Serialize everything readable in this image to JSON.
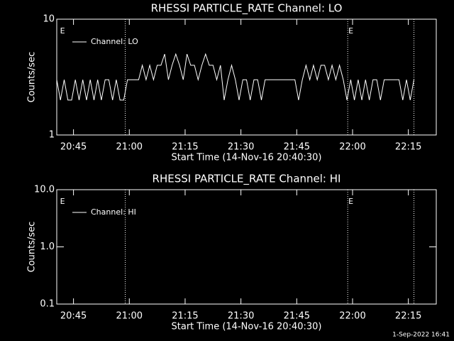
{
  "chart_data": [
    {
      "type": "line",
      "title": "RHESSI PARTICLE_RATE Channel: LO",
      "xlabel": "Start Time (14-Nov-16 20:40:30)",
      "ylabel": "Counts/sec",
      "log_y": true,
      "ylim": [
        1,
        10
      ],
      "yticks": [
        10,
        1
      ],
      "xlim": [
        0,
        102
      ],
      "xticks": [
        {
          "value": 4.5,
          "label": "20:45"
        },
        {
          "value": 19.5,
          "label": "21:00"
        },
        {
          "value": 34.5,
          "label": "21:15"
        },
        {
          "value": 49.5,
          "label": "21:30"
        },
        {
          "value": 64.5,
          "label": "21:45"
        },
        {
          "value": 79.5,
          "label": "22:00"
        },
        {
          "value": 94.5,
          "label": "22:15"
        }
      ],
      "vlines": [
        18.4,
        78.2,
        96
      ],
      "annotations": [
        {
          "text": "E",
          "x": 0.7
        },
        {
          "text": "E",
          "x": 78.2
        }
      ],
      "legend": "upper left",
      "x": [
        0,
        1,
        2,
        3,
        4,
        5,
        6,
        7,
        8,
        9,
        10,
        11,
        12,
        13,
        14,
        15,
        16,
        17,
        18,
        19,
        20,
        21,
        22,
        23,
        24,
        25,
        26,
        27,
        28,
        29,
        30,
        31,
        32,
        33,
        34,
        35,
        36,
        37,
        38,
        39,
        40,
        41,
        42,
        43,
        44,
        45,
        46,
        47,
        48,
        49,
        50,
        51,
        52,
        53,
        54,
        55,
        56,
        57,
        58,
        59,
        60,
        61,
        62,
        63,
        64,
        65,
        66,
        67,
        68,
        69,
        70,
        71,
        72,
        73,
        74,
        75,
        76,
        77,
        78,
        79,
        80,
        81,
        82,
        83,
        84,
        85,
        86,
        87,
        88,
        89,
        90,
        91,
        92,
        93,
        94,
        95,
        96
      ],
      "series": [
        {
          "name": "Channel: LO",
          "color": "#ffffff",
          "values": [
            3,
            2,
            3,
            2,
            2,
            3,
            2,
            3,
            2,
            3,
            2,
            3,
            2,
            3,
            3,
            2,
            3,
            2,
            2,
            3,
            3,
            3,
            3,
            4,
            3,
            4,
            3,
            4,
            4,
            5,
            3,
            4,
            5,
            4,
            3,
            5,
            4,
            4,
            3,
            4,
            5,
            4,
            4,
            3,
            4,
            2,
            3,
            4,
            3,
            2,
            3,
            3,
            2,
            3,
            3,
            2,
            3,
            3,
            3,
            3,
            3,
            3,
            3,
            3,
            3,
            2,
            3,
            4,
            3,
            4,
            3,
            4,
            4,
            3,
            4,
            3,
            4,
            3,
            2,
            3,
            2,
            3,
            2,
            3,
            2,
            3,
            3,
            2,
            3,
            3,
            3,
            3,
            3,
            2,
            3,
            2,
            3
          ]
        }
      ]
    },
    {
      "type": "line",
      "title": "RHESSI PARTICLE_RATE Channel: HI",
      "xlabel": "Start Time (14-Nov-16 20:40:30)",
      "ylabel": "Counts/sec",
      "log_y": true,
      "ylim": [
        0.1,
        10
      ],
      "yticks": [
        {
          "value": 10,
          "label": "10.0"
        },
        {
          "value": 1,
          "label": "1.0"
        },
        0.1
      ],
      "xlim": [
        0,
        102
      ],
      "xticks": [
        {
          "value": 4.5,
          "label": "20:45"
        },
        {
          "value": 19.5,
          "label": "21:00"
        },
        {
          "value": 34.5,
          "label": "21:15"
        },
        {
          "value": 49.5,
          "label": "21:30"
        },
        {
          "value": 64.5,
          "label": "21:45"
        },
        {
          "value": 79.5,
          "label": "22:00"
        },
        {
          "value": 94.5,
          "label": "22:15"
        }
      ],
      "vlines": [
        18.4,
        78.2,
        96
      ],
      "annotations": [
        {
          "text": "E",
          "x": 0.7
        },
        {
          "text": "E",
          "x": 78.2
        }
      ],
      "legend": "upper left",
      "x": [],
      "series": [
        {
          "name": "Channel: HI",
          "color": "#ffffff",
          "values": []
        }
      ]
    }
  ],
  "footer": "1-Sep-2022 16:41"
}
